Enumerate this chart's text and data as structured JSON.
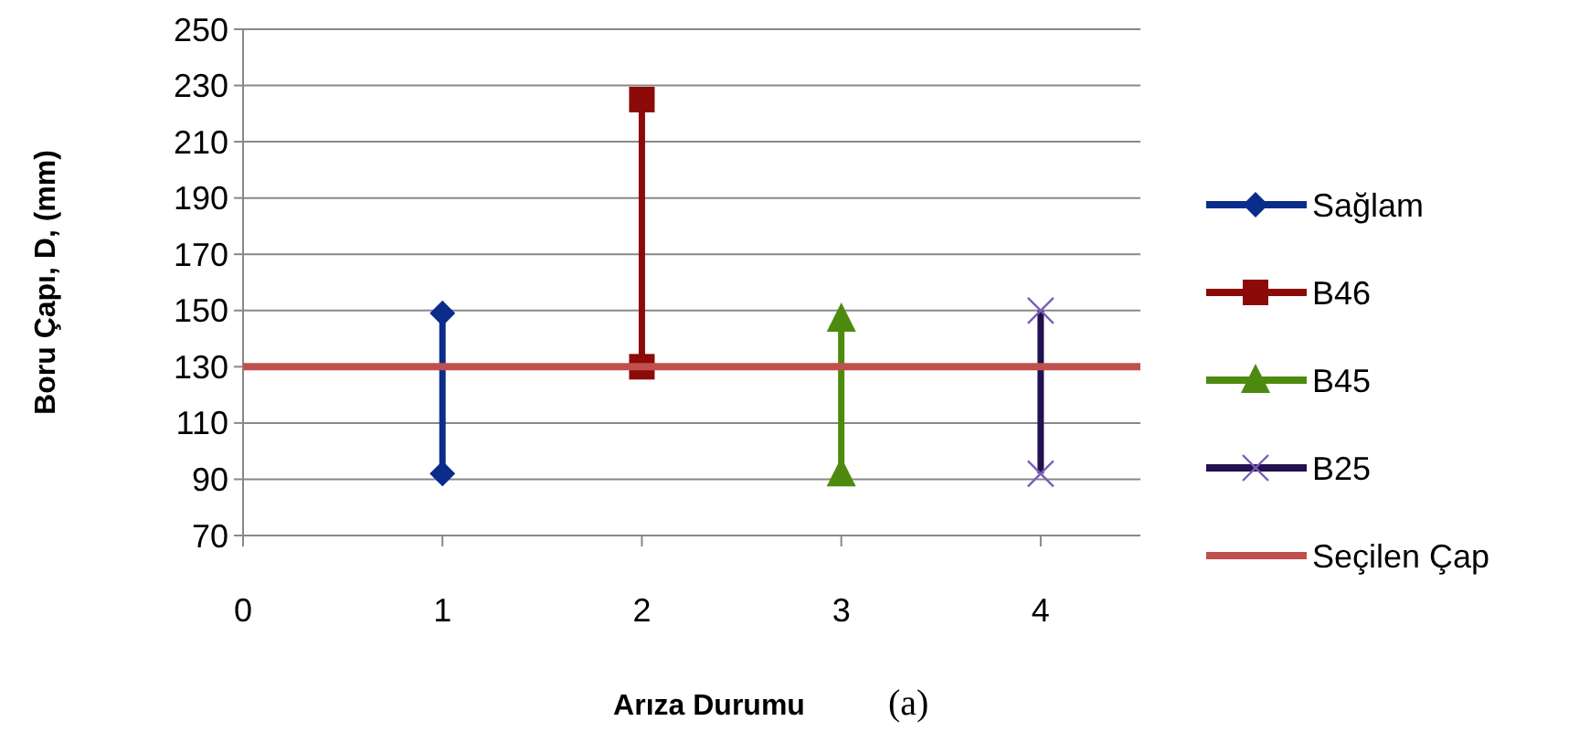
{
  "chart_data": {
    "type": "line",
    "xlabel": "Arıza Durumu",
    "ylabel": "Boru Çapı, D, (mm)",
    "annotations": [
      "(a)"
    ],
    "xlim": [
      0,
      4.5
    ],
    "xticks": [
      0,
      1,
      2,
      3,
      4
    ],
    "ylim": [
      70,
      250
    ],
    "yticks": [
      70,
      90,
      110,
      130,
      150,
      170,
      190,
      210,
      230,
      250
    ],
    "grid": "y",
    "legend": "right",
    "series": [
      {
        "name": "Sağlam",
        "color": "#0a2d8c",
        "x": [
          1,
          1
        ],
        "values": [
          149,
          92
        ],
        "marker": "diamond"
      },
      {
        "name": "B46",
        "color": "#8c0a0a",
        "x": [
          2,
          2
        ],
        "values": [
          225,
          130
        ],
        "marker": "square"
      },
      {
        "name": "B45",
        "color": "#4f8a10",
        "x": [
          3,
          3
        ],
        "values": [
          147,
          92
        ],
        "marker": "triangle"
      },
      {
        "name": "B25",
        "color": "#22104f",
        "x": [
          4,
          4
        ],
        "values": [
          150,
          92
        ],
        "marker": "cross"
      },
      {
        "name": "Seçilen Çap",
        "color": "#c0504d",
        "x": [
          0,
          4.5
        ],
        "values": [
          130,
          130
        ],
        "marker": "none"
      }
    ]
  }
}
